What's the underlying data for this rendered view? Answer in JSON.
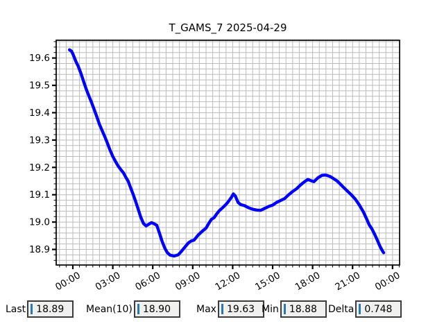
{
  "window": {
    "background": "#ffffff"
  },
  "chart_data": {
    "type": "line",
    "title": "T_GAMS_7 2025-04-29",
    "xlabel": "",
    "ylabel": "",
    "line_color": "#0000ff",
    "line_width": 4.4,
    "grid_color": "#bbbbbb",
    "grid": "on",
    "legend_position": "none",
    "x_unit": "hours_from_midnight",
    "xlim": [
      -1.25,
      24.53
    ],
    "ylim": [
      18.843,
      19.665
    ],
    "x_major_ticks": [
      0,
      3,
      6,
      9,
      12,
      15,
      18,
      21,
      24
    ],
    "x_major_labels": [
      "00:00",
      "03:00",
      "06:00",
      "09:00",
      "12:00",
      "15:00",
      "18:00",
      "21:00",
      "00:00"
    ],
    "x_minor_step": 0.5,
    "y_major_ticks": [
      18.9,
      19.0,
      19.1,
      19.2,
      19.3,
      19.4,
      19.5,
      19.6
    ],
    "y_major_labels": [
      "18.9",
      "19.0",
      "19.1",
      "19.2",
      "19.3",
      "19.4",
      "19.5",
      "19.6"
    ],
    "y_minor_step": 0.02,
    "series": [
      {
        "name": "T_GAMS_7",
        "x": [
          -0.25,
          -0.1,
          0,
          0.25,
          0.4,
          0.6,
          0.8,
          1,
          1.2,
          1.4,
          1.6,
          1.8,
          2,
          2.2,
          2.4,
          2.6,
          2.8,
          3,
          3.2,
          3.4,
          3.6,
          3.8,
          4,
          4.15,
          4.3,
          4.5,
          4.7,
          4.9,
          5.1,
          5.3,
          5.5,
          5.7,
          5.9,
          6.1,
          6.3,
          6.5,
          6.7,
          6.9,
          7.1,
          7.3,
          7.6,
          7.9,
          8.1,
          8.4,
          8.7,
          8.9,
          9.1,
          9.4,
          9.7,
          10,
          10.2,
          10.4,
          10.6,
          10.8,
          11,
          11.3,
          11.6,
          11.9,
          12.05,
          12.2,
          12.4,
          12.6,
          12.9,
          13.2,
          13.5,
          13.8,
          14.1,
          14.4,
          14.7,
          15,
          15.3,
          15.6,
          15.9,
          16.2,
          16.5,
          16.8,
          17.1,
          17.4,
          17.65,
          17.9,
          18.1,
          18.4,
          18.7,
          19,
          19.3,
          19.6,
          19.85,
          20.1,
          20.3,
          20.6,
          20.9,
          21.2,
          21.5,
          21.8,
          22.05,
          22.25,
          22.45,
          22.65,
          22.85,
          23.05,
          23.2,
          23.33
        ],
        "y": [
          19.63,
          19.625,
          19.615,
          19.585,
          19.57,
          19.545,
          19.515,
          19.487,
          19.462,
          19.438,
          19.412,
          19.385,
          19.357,
          19.335,
          19.312,
          19.288,
          19.262,
          19.24,
          19.222,
          19.205,
          19.192,
          19.18,
          19.162,
          19.15,
          19.13,
          19.105,
          19.078,
          19.048,
          19.018,
          18.995,
          18.986,
          18.992,
          18.998,
          18.994,
          18.988,
          18.96,
          18.93,
          18.905,
          18.888,
          18.879,
          18.876,
          18.88,
          18.89,
          18.908,
          18.925,
          18.931,
          18.934,
          18.952,
          18.966,
          18.978,
          18.995,
          19.01,
          19.016,
          19.03,
          19.042,
          19.055,
          19.07,
          19.09,
          19.103,
          19.095,
          19.072,
          19.064,
          19.06,
          19.052,
          19.047,
          19.044,
          19.043,
          19.05,
          19.057,
          19.062,
          19.072,
          19.079,
          19.086,
          19.1,
          19.112,
          19.122,
          19.136,
          19.148,
          19.156,
          19.151,
          19.148,
          19.162,
          19.171,
          19.172,
          19.167,
          19.158,
          19.15,
          19.138,
          19.128,
          19.114,
          19.1,
          19.084,
          19.063,
          19.038,
          19.012,
          18.99,
          18.975,
          18.956,
          18.935,
          18.912,
          18.898,
          18.888
        ]
      }
    ]
  },
  "stats": [
    {
      "label": "Last",
      "value": "18.89"
    },
    {
      "label": "Mean(10)",
      "value": "18.90"
    },
    {
      "label": "Max",
      "value": "19.63"
    },
    {
      "label": "Min",
      "value": "18.88"
    },
    {
      "label": "Delta",
      "value": "0.748"
    }
  ],
  "colors": {
    "cursor_bar": "#2878b8",
    "box_background": "#f0f0ee",
    "box_border": "#3c3c3c",
    "frame": "#000000"
  }
}
